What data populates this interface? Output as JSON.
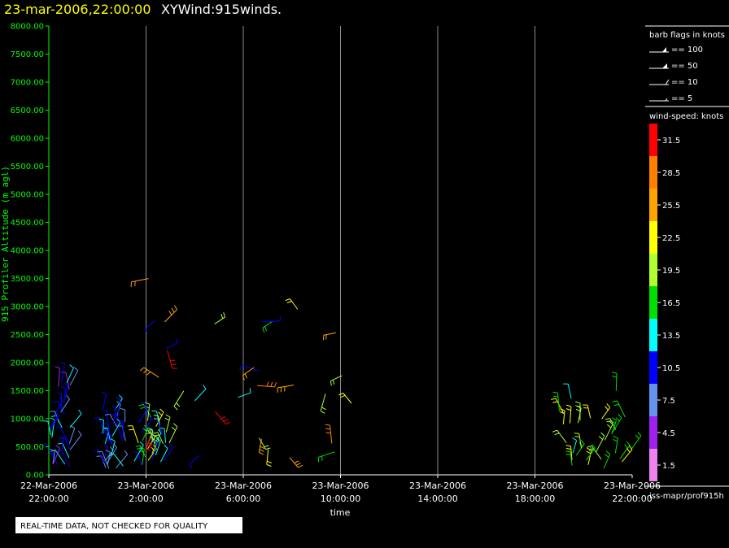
{
  "header": {
    "timestamp": "23-mar-2006,22:00:00",
    "plot_name": "XYWind:915winds."
  },
  "footer": {
    "quality_notice": "REAL-TIME DATA, NOT CHECKED FOR QUALITY",
    "source_path": "iss-mapr/prof915h"
  },
  "barb_legend": {
    "title": "barb flags in knots",
    "items": [
      "== 100",
      "== 50",
      "== 10",
      "== 5"
    ]
  },
  "speed_legend": {
    "title": "wind-speed: knots",
    "bins": [
      {
        "label": "31.5",
        "color": "#ff0000"
      },
      {
        "label": "28.5",
        "color": "#ff7f00"
      },
      {
        "label": "25.5",
        "color": "#ffa500"
      },
      {
        "label": "22.5",
        "color": "#ffff00"
      },
      {
        "label": "19.5",
        "color": "#adff2f"
      },
      {
        "label": "16.5",
        "color": "#00e000"
      },
      {
        "label": "13.5",
        "color": "#00ffff"
      },
      {
        "label": "10.5",
        "color": "#0000ff"
      },
      {
        "label": "7.5",
        "color": "#6495ed"
      },
      {
        "label": "4.5",
        "color": "#a020f0"
      },
      {
        "label": "1.5",
        "color": "#ee82ee"
      }
    ]
  },
  "chart_data": {
    "type": "scatter",
    "xlabel": "time",
    "ylabel": "915 Profiler Altitude (m agl)",
    "ylim": [
      0,
      8000
    ],
    "xlim_hours": [
      0,
      24
    ],
    "y_ticks": [
      "0.00",
      "500.00",
      "1000.00",
      "1500.00",
      "2000.00",
      "2500.00",
      "3000.00",
      "3500.00",
      "4000.00",
      "4500.00",
      "5000.00",
      "5500.00",
      "6000.00",
      "6500.00",
      "7000.00",
      "7500.00",
      "8000.00"
    ],
    "x_ticks": [
      {
        "hour": 0,
        "date": "22-Mar-2006",
        "time": "22:00:00"
      },
      {
        "hour": 4,
        "date": "23-Mar-2006",
        "time": "2:00:00"
      },
      {
        "hour": 8,
        "date": "23-Mar-2006",
        "time": "6:00:00"
      },
      {
        "hour": 12,
        "date": "23-Mar-2006",
        "time": "10:00:00"
      },
      {
        "hour": 16,
        "date": "23-Mar-2006",
        "time": "14:00:00"
      },
      {
        "hour": 20,
        "date": "23-Mar-2006",
        "time": "18:00:00"
      },
      {
        "hour": 24,
        "date": "23-Mar-2006",
        "time": "22:00:00"
      }
    ],
    "grid": "vertical",
    "barb_clusters": [
      {
        "hours": [
          0,
          1
        ],
        "alt": [
          100,
          1750
        ],
        "speed": [
          5,
          15
        ]
      },
      {
        "hours": [
          2.2,
          3.2
        ],
        "alt": [
          100,
          1250
        ],
        "speed": [
          6,
          14
        ]
      },
      {
        "hours": [
          3.5,
          5
        ],
        "alt": [
          100,
          1100
        ],
        "speed": [
          10,
          22
        ]
      },
      {
        "hours": [
          4,
          12.5
        ],
        "alt": [
          300,
          3600
        ],
        "speed": [
          9,
          33
        ]
      },
      {
        "hours": [
          21,
          24
        ],
        "alt": [
          100,
          1500
        ],
        "speed": [
          14,
          24
        ]
      }
    ]
  }
}
